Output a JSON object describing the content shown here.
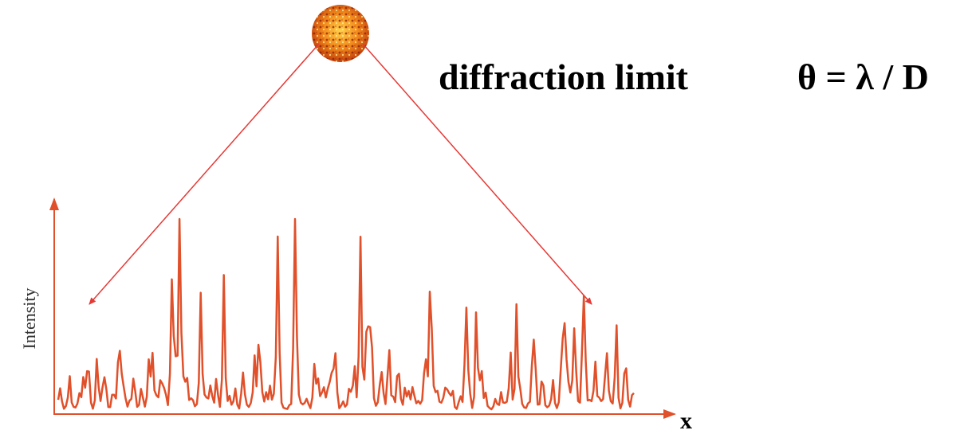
{
  "title": "diffraction limit",
  "formula": "θ = λ / D",
  "y_axis_label": "Intensity",
  "x_axis_label": "x"
}
